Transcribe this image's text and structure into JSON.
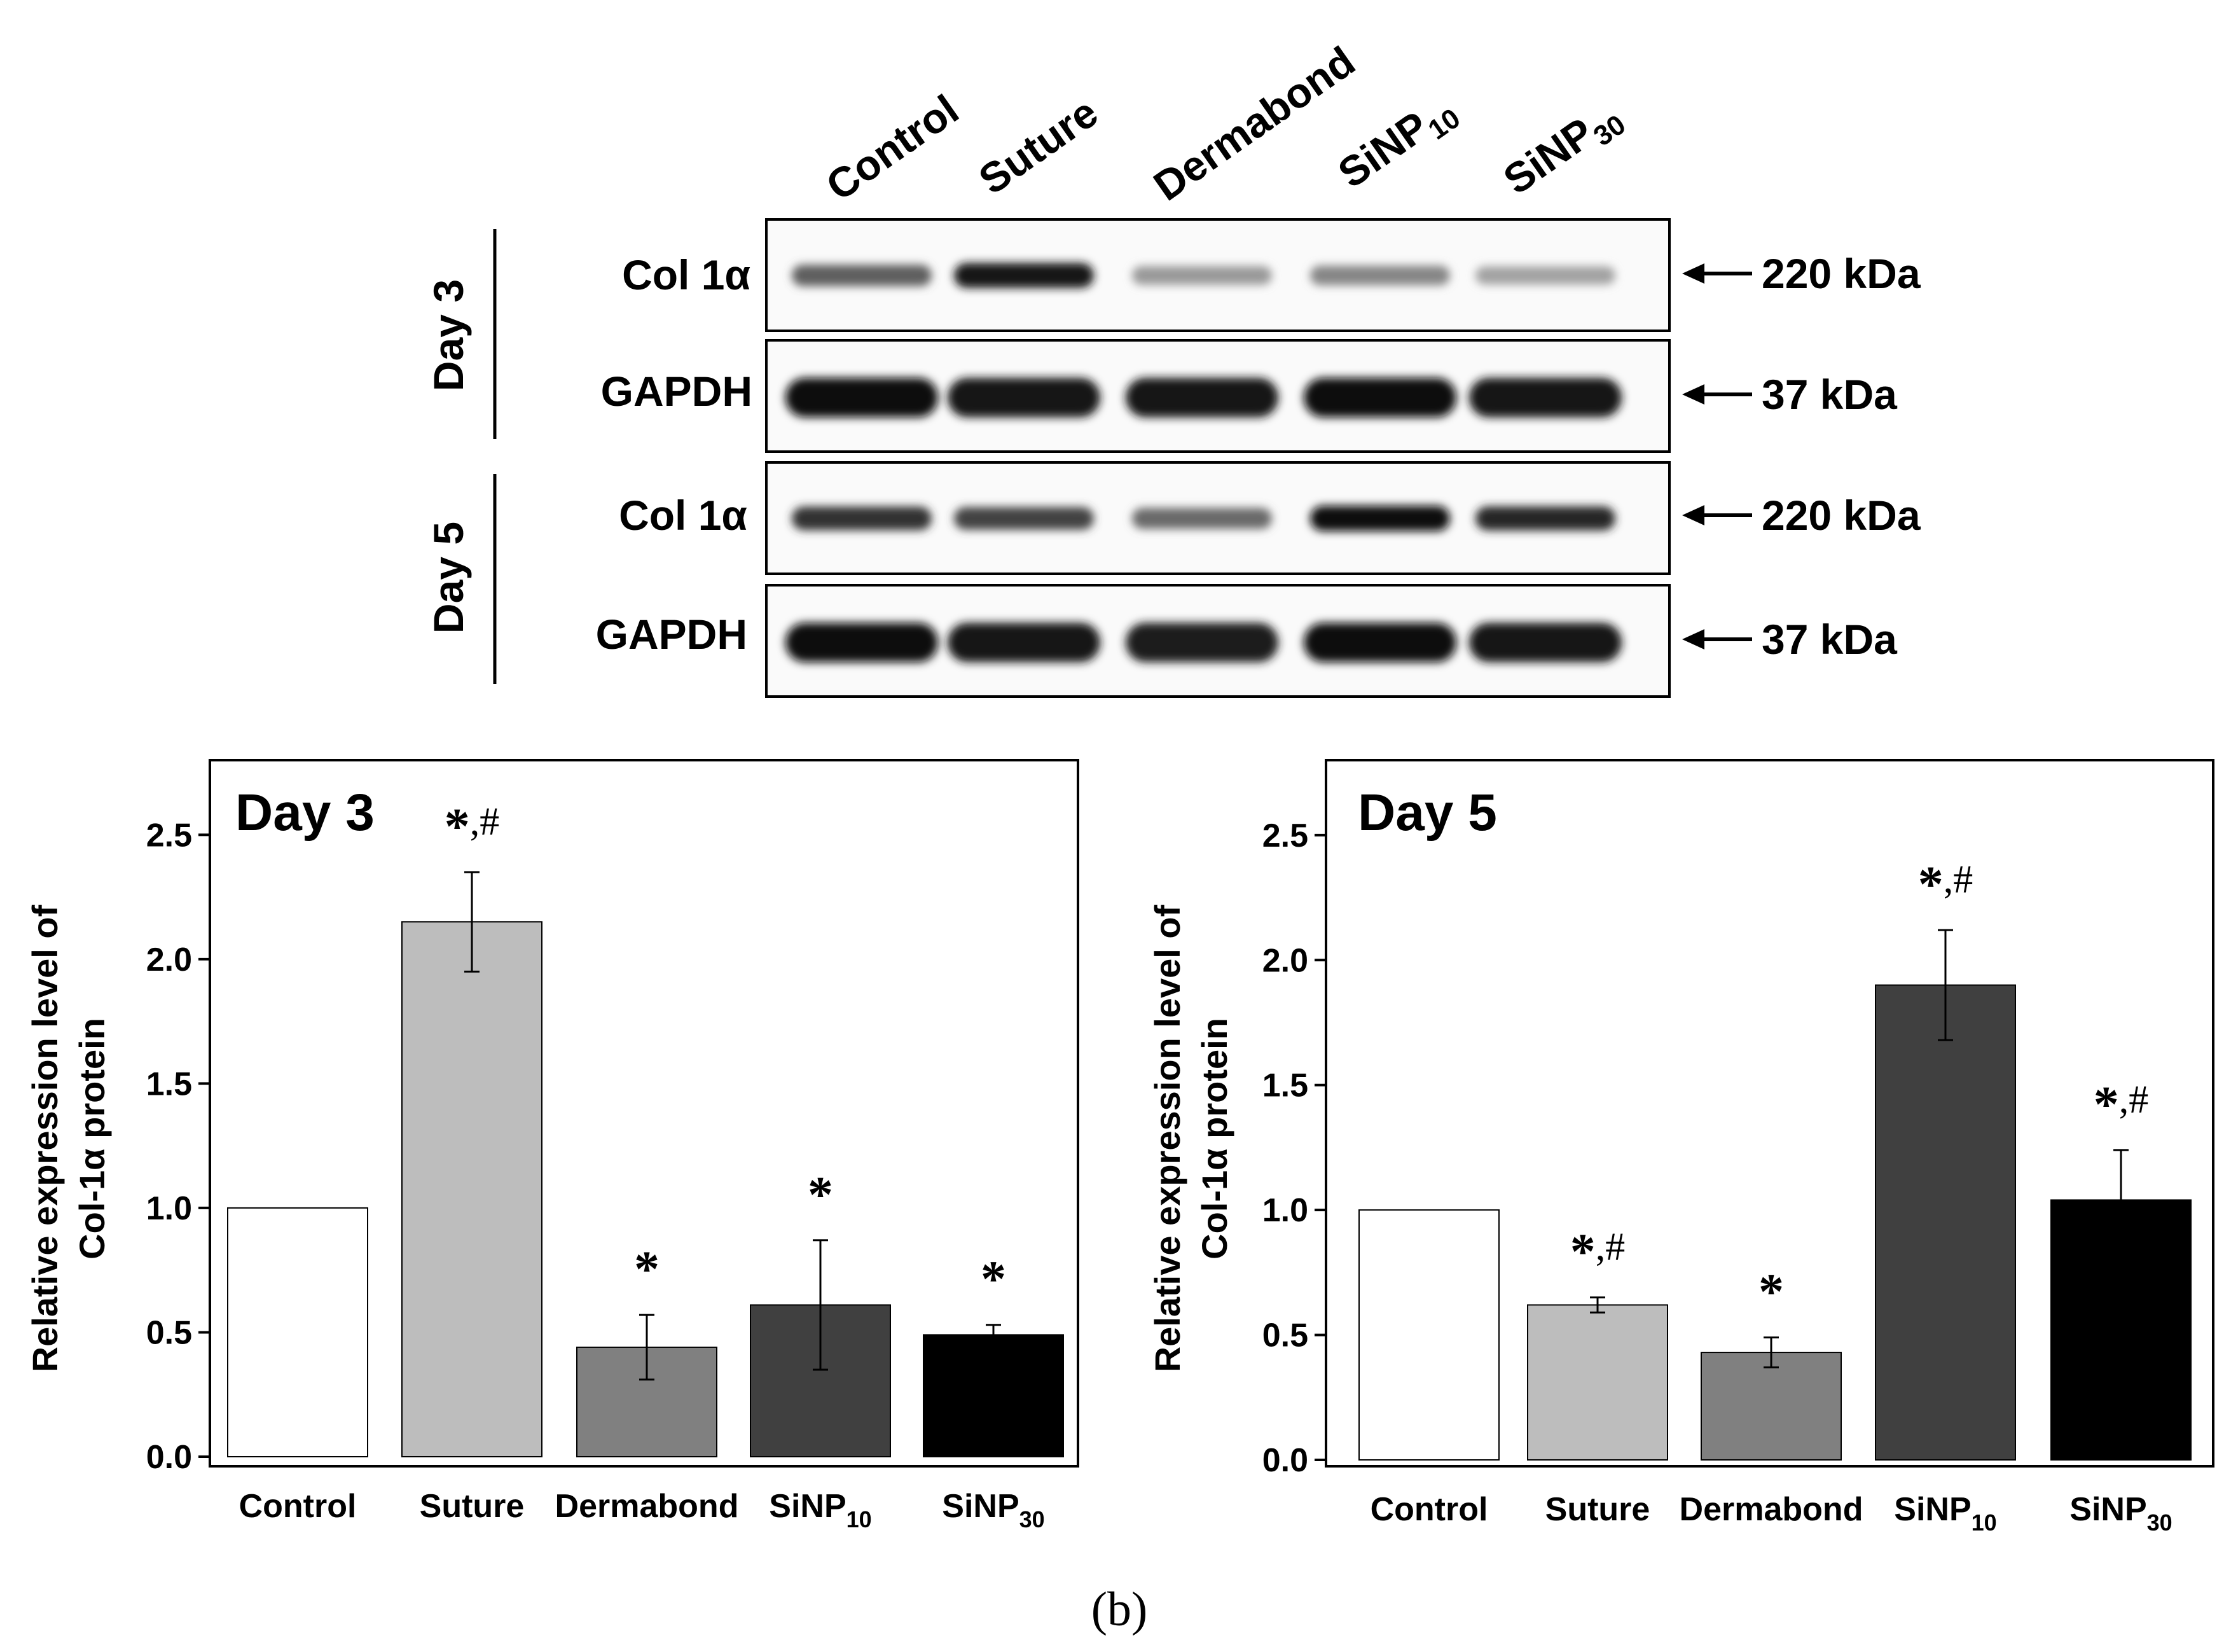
{
  "blot": {
    "lanes": [
      "Control",
      "Suture",
      "Dermabond",
      "SiNP",
      "SiNP"
    ],
    "lane_subscripts": [
      "",
      "",
      "",
      "10",
      "30"
    ],
    "groups": [
      {
        "label": "Day 3",
        "rows": [
          {
            "protein": "Col 1α",
            "size": "220 kDa",
            "intensity": [
              0.55,
              0.95,
              0.25,
              0.35,
              0.2
            ]
          },
          {
            "protein": "GAPDH",
            "size": "37 kDa",
            "intensity": [
              1.0,
              0.95,
              0.95,
              1.0,
              0.95
            ]
          }
        ]
      },
      {
        "label": "Day 5",
        "rows": [
          {
            "protein": "Col 1α",
            "size": "220 kDa",
            "intensity": [
              0.8,
              0.7,
              0.5,
              1.0,
              0.85
            ]
          },
          {
            "protein": "GAPDH",
            "size": "37 kDa",
            "intensity": [
              1.0,
              0.95,
              0.9,
              1.0,
              0.95
            ]
          }
        ]
      }
    ]
  },
  "chart_data": [
    {
      "type": "bar",
      "title": "Day 3",
      "categories": [
        "Control",
        "Suture",
        "Dermabond",
        "SiNP",
        "SiNP"
      ],
      "category_subscripts": [
        "",
        "",
        "",
        "10",
        "30"
      ],
      "values": [
        1.0,
        2.15,
        0.44,
        0.61,
        0.49
      ],
      "errors": [
        0,
        0.2,
        0.13,
        0.26,
        0.04
      ],
      "significance": [
        "",
        "*,#",
        "*",
        "*",
        "*"
      ],
      "bar_colors": [
        "#ffffff",
        "#bdbdbd",
        "#808080",
        "#404040",
        "#000000"
      ],
      "ylabel": [
        "Relative expression level of",
        "Col-1α protein"
      ],
      "ylim": [
        0,
        2.8
      ],
      "yticks": [
        "0.0",
        "0.5",
        "1.0",
        "1.5",
        "2.0",
        "2.5"
      ]
    },
    {
      "type": "bar",
      "title": "Day 5",
      "categories": [
        "Control",
        "Suture",
        "Dermabond",
        "SiNP",
        "SiNP"
      ],
      "category_subscripts": [
        "",
        "",
        "",
        "10",
        "30"
      ],
      "values": [
        1.0,
        0.62,
        0.43,
        1.9,
        1.04
      ],
      "errors": [
        0,
        0.03,
        0.06,
        0.22,
        0.2
      ],
      "significance": [
        "",
        "*,#",
        "*",
        "*,#",
        "*,#"
      ],
      "bar_colors": [
        "#ffffff",
        "#bdbdbd",
        "#808080",
        "#404040",
        "#000000"
      ],
      "ylabel": [
        "Relative expression level of",
        "Col-1α protein"
      ],
      "ylim": [
        0,
        2.8
      ],
      "yticks": [
        "0.0",
        "0.5",
        "1.0",
        "1.5",
        "2.0",
        "2.5"
      ]
    }
  ],
  "caption": "(b)"
}
